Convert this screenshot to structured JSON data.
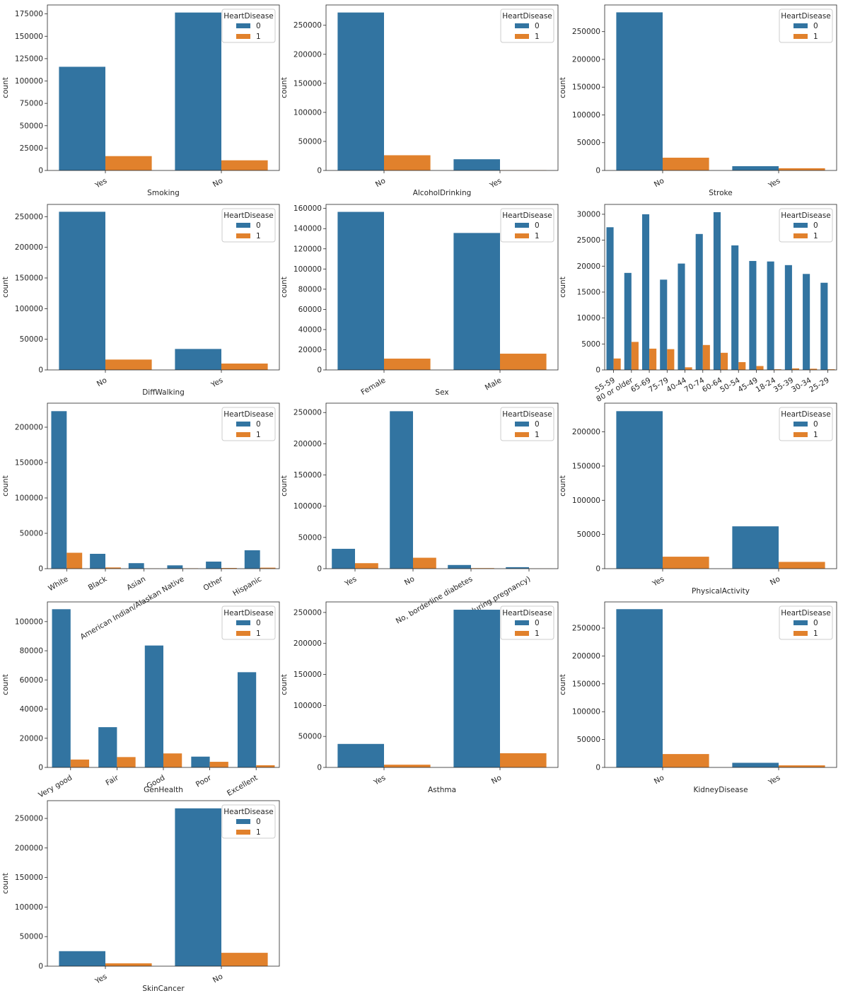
{
  "legend_title": "HeartDisease",
  "legend_labels": [
    "0",
    "1"
  ],
  "y_axis_label": "count",
  "colors": {
    "series_0": "#3274a1",
    "series_1": "#e1812c"
  },
  "chart_data": [
    {
      "type": "bar",
      "xlabel": "Smoking",
      "ylabel": "count",
      "categories": [
        "Yes",
        "No"
      ],
      "series": [
        {
          "name": "0",
          "values": [
            115887,
            176535
          ]
        },
        {
          "name": "1",
          "values": [
            16037,
            11336
          ]
        }
      ],
      "yticks": [
        0,
        25000,
        50000,
        75000,
        100000,
        125000,
        150000,
        175000
      ],
      "ylim": [
        0,
        185000
      ],
      "tick_rotation": 30
    },
    {
      "type": "bar",
      "xlabel": "AlcoholDrinking",
      "ylabel": "count",
      "categories": [
        "No",
        "Yes"
      ],
      "series": [
        {
          "name": "0",
          "values": [
            272000,
            19300
          ]
        },
        {
          "name": "1",
          "values": [
            26200,
            500
          ]
        }
      ],
      "yticks": [
        0,
        50000,
        100000,
        150000,
        200000,
        250000
      ],
      "ylim": [
        0,
        285000
      ],
      "tick_rotation": 30
    },
    {
      "type": "bar",
      "xlabel": "Stroke",
      "ylabel": "count",
      "categories": [
        "No",
        "Yes"
      ],
      "series": [
        {
          "name": "0",
          "values": [
            284700,
            7700
          ]
        },
        {
          "name": "1",
          "values": [
            23000,
            4000
          ]
        }
      ],
      "yticks": [
        0,
        50000,
        100000,
        150000,
        200000,
        250000
      ],
      "ylim": [
        0,
        298000
      ],
      "tick_rotation": 30
    },
    {
      "type": "bar",
      "xlabel": "DiffWalking",
      "ylabel": "count",
      "categories": [
        "No",
        "Yes"
      ],
      "series": [
        {
          "name": "0",
          "values": [
            258000,
            34200
          ]
        },
        {
          "name": "1",
          "values": [
            16900,
            10400
          ]
        }
      ],
      "yticks": [
        0,
        50000,
        100000,
        150000,
        200000,
        250000
      ],
      "ylim": [
        0,
        270000
      ],
      "tick_rotation": 30
    },
    {
      "type": "bar",
      "xlabel": "Sex",
      "ylabel": "count",
      "categories": [
        "Female",
        "Male"
      ],
      "series": [
        {
          "name": "0",
          "values": [
            156600,
            135700
          ]
        },
        {
          "name": "1",
          "values": [
            11200,
            16100
          ]
        }
      ],
      "yticks": [
        0,
        20000,
        40000,
        60000,
        80000,
        100000,
        120000,
        140000,
        160000
      ],
      "ylim": [
        0,
        164000
      ],
      "tick_rotation": 30
    },
    {
      "type": "bar",
      "xlabel": "",
      "ylabel": "count",
      "categories": [
        "55-59",
        "80 or older",
        "65-69",
        "75-79",
        "40-44",
        "70-74",
        "60-64",
        "50-54",
        "45-49",
        "18-24",
        "35-39",
        "30-34",
        "25-29"
      ],
      "series": [
        {
          "name": "0",
          "values": [
            27500,
            18700,
            30000,
            17400,
            20500,
            26200,
            30400,
            24000,
            21000,
            20900,
            20200,
            18500,
            16800
          ]
        },
        {
          "name": "1",
          "values": [
            2200,
            5400,
            4100,
            4000,
            500,
            4800,
            3300,
            1500,
            750,
            130,
            300,
            230,
            130
          ]
        }
      ],
      "yticks": [
        0,
        5000,
        10000,
        15000,
        20000,
        25000,
        30000
      ],
      "ylim": [
        0,
        31900
      ],
      "tick_rotation": 30
    },
    {
      "type": "bar",
      "xlabel": "",
      "ylabel": "count",
      "categories": [
        "White",
        "Black",
        "Asian",
        "American Indian/Alaskan Native",
        "Other",
        "Hispanic"
      ],
      "series": [
        {
          "name": "0",
          "values": [
            222700,
            21000,
            7800,
            4700,
            10000,
            26000
          ]
        },
        {
          "name": "1",
          "values": [
            22500,
            1700,
            266,
            542,
            1000,
            1400
          ]
        }
      ],
      "yticks": [
        0,
        50000,
        100000,
        150000,
        200000
      ],
      "ylim": [
        0,
        234000
      ],
      "tick_rotation": 30
    },
    {
      "type": "bar",
      "xlabel": "",
      "ylabel": "count",
      "categories": [
        "Yes",
        "No",
        "No, borderline diabetes",
        "Yes (during pregnancy)"
      ],
      "series": [
        {
          "name": "0",
          "values": [
            31800,
            252100,
            5900,
            2400
          ]
        },
        {
          "name": "1",
          "values": [
            8800,
            17500,
            900,
            150
          ]
        }
      ],
      "yticks": [
        0,
        50000,
        100000,
        150000,
        200000,
        250000
      ],
      "ylim": [
        0,
        265000
      ],
      "tick_rotation": 30
    },
    {
      "type": "bar",
      "xlabel": "PhysicalActivity",
      "ylabel": "count",
      "categories": [
        "Yes",
        "No"
      ],
      "series": [
        {
          "name": "0",
          "values": [
            230300,
            61900
          ]
        },
        {
          "name": "1",
          "values": [
            17500,
            9900
          ]
        }
      ],
      "yticks": [
        0,
        50000,
        100000,
        150000,
        200000
      ],
      "ylim": [
        0,
        242000
      ],
      "tick_rotation": 30
    },
    {
      "type": "bar",
      "xlabel": "GenHealth",
      "ylabel": "count",
      "categories": [
        "Very good",
        "Fair",
        "Good",
        "Poor",
        "Excellent"
      ],
      "series": [
        {
          "name": "0",
          "values": [
            108500,
            27600,
            83600,
            7400,
            65300
          ]
        },
        {
          "name": "1",
          "values": [
            5400,
            7100,
            9600,
            3850,
            1500
          ]
        }
      ],
      "yticks": [
        0,
        20000,
        40000,
        60000,
        80000,
        100000
      ],
      "ylim": [
        0,
        113500
      ],
      "tick_rotation": 30
    },
    {
      "type": "bar",
      "xlabel": "Asthma",
      "ylabel": "count",
      "categories": [
        "Yes",
        "No"
      ],
      "series": [
        {
          "name": "0",
          "values": [
            37900,
            254400
          ]
        },
        {
          "name": "1",
          "values": [
            4400,
            22900
          ]
        }
      ],
      "yticks": [
        0,
        50000,
        100000,
        150000,
        200000,
        250000
      ],
      "ylim": [
        0,
        267000
      ],
      "tick_rotation": 30
    },
    {
      "type": "bar",
      "xlabel": "KidneyDisease",
      "ylabel": "count",
      "categories": [
        "No",
        "Yes"
      ],
      "series": [
        {
          "name": "0",
          "values": [
            284000,
            8300
          ]
        },
        {
          "name": "1",
          "values": [
            24000,
            3700
          ]
        }
      ],
      "yticks": [
        0,
        50000,
        100000,
        150000,
        200000,
        250000
      ],
      "ylim": [
        0,
        297000
      ],
      "tick_rotation": 30
    },
    {
      "type": "bar",
      "xlabel": "SkinCancer",
      "ylabel": "count",
      "categories": [
        "Yes",
        "No"
      ],
      "series": [
        {
          "name": "0",
          "values": [
            25400,
            267000
          ]
        },
        {
          "name": "1",
          "values": [
            4800,
            22600
          ]
        }
      ],
      "yticks": [
        0,
        50000,
        100000,
        150000,
        200000,
        250000
      ],
      "ylim": [
        0,
        280000
      ],
      "tick_rotation": 30
    }
  ]
}
